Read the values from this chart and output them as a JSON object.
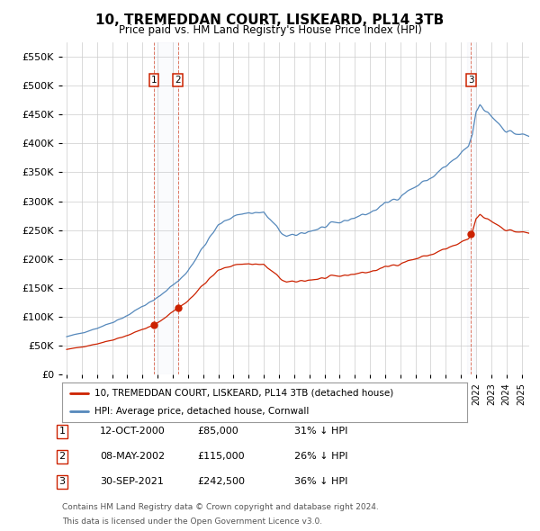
{
  "title": "10, TREMEDDAN COURT, LISKEARD, PL14 3TB",
  "subtitle": "Price paid vs. HM Land Registry's House Price Index (HPI)",
  "legend_line1": "10, TREMEDDAN COURT, LISKEARD, PL14 3TB (detached house)",
  "legend_line2": "HPI: Average price, detached house, Cornwall",
  "sale1_date": "12-OCT-2000",
  "sale1_price": "£85,000",
  "sale1_hpi": "31% ↓ HPI",
  "sale2_date": "08-MAY-2002",
  "sale2_price": "£115,000",
  "sale2_hpi": "26% ↓ HPI",
  "sale3_date": "30-SEP-2021",
  "sale3_price": "£242,500",
  "sale3_hpi": "36% ↓ HPI",
  "footnote1": "Contains HM Land Registry data © Crown copyright and database right 2024.",
  "footnote2": "This data is licensed under the Open Government Licence v3.0.",
  "hpi_color": "#5588bb",
  "price_color": "#cc2200",
  "background_color": "#ffffff",
  "grid_color": "#cccccc",
  "ylim": [
    0,
    575000
  ],
  "yticks": [
    0,
    50000,
    100000,
    150000,
    200000,
    250000,
    300000,
    350000,
    400000,
    450000,
    500000,
    550000
  ]
}
